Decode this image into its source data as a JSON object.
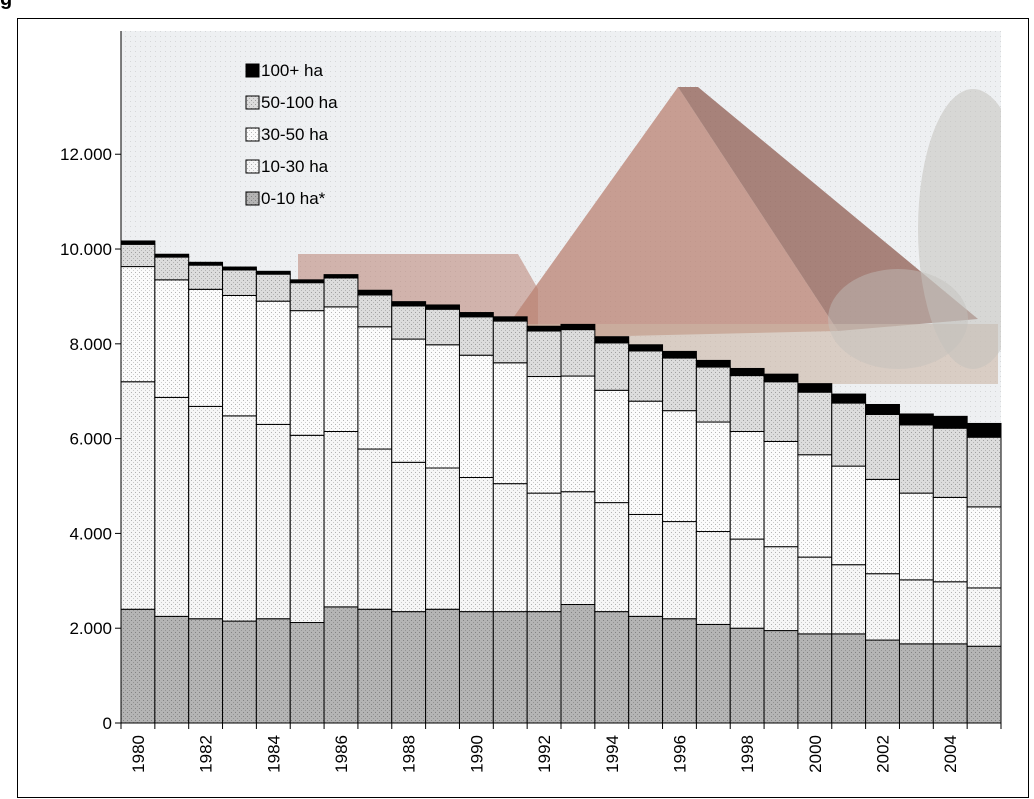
{
  "page": {
    "title": "g"
  },
  "chart_data": {
    "type": "bar",
    "stacked": true,
    "title": "",
    "xlabel": "",
    "ylabel": "",
    "ylim": [
      0,
      14600
    ],
    "y_ticks": [
      0,
      2000,
      4000,
      6000,
      8000,
      10000,
      12000
    ],
    "y_tick_labels": [
      "0",
      "2.000",
      "4.000",
      "6.000",
      "8.000",
      "10.000",
      "12.000"
    ],
    "x_tick_labels": [
      "1980",
      "1982",
      "1984",
      "1986",
      "1988",
      "1990",
      "1992",
      "1994",
      "1996",
      "1998",
      "2000",
      "2002",
      "2004"
    ],
    "categories": [
      "1980",
      "1981",
      "1982",
      "1983",
      "1984",
      "1985",
      "1986",
      "1987",
      "1988",
      "1989",
      "1990",
      "1991",
      "1992",
      "1993",
      "1994",
      "1995",
      "1996",
      "1997",
      "1998",
      "1999",
      "2000",
      "2001",
      "2002",
      "2003",
      "2004",
      "2005"
    ],
    "series": [
      {
        "name": "0-10 ha*",
        "color": "#b4b4b4",
        "values": [
          2400,
          2250,
          2200,
          2150,
          2200,
          2120,
          2450,
          2400,
          2350,
          2400,
          2350,
          2350,
          2350,
          2500,
          2350,
          2250,
          2200,
          2080,
          2000,
          1950,
          1880,
          1880,
          1750,
          1670,
          1670,
          1620
        ]
      },
      {
        "name": "10-30 ha",
        "color": "#f6f6f6",
        "values": [
          4800,
          4620,
          4480,
          4330,
          4100,
          3950,
          3700,
          3380,
          3150,
          2980,
          2830,
          2700,
          2500,
          2380,
          2300,
          2150,
          2050,
          1960,
          1880,
          1770,
          1620,
          1460,
          1400,
          1350,
          1310,
          1230
        ]
      },
      {
        "name": "30-50 ha",
        "color": "#fbfbfb",
        "values": [
          2430,
          2480,
          2470,
          2540,
          2600,
          2630,
          2630,
          2580,
          2600,
          2600,
          2580,
          2550,
          2460,
          2440,
          2370,
          2390,
          2340,
          2310,
          2270,
          2220,
          2160,
          2080,
          1990,
          1830,
          1780,
          1710
        ]
      },
      {
        "name": "50-100 ha",
        "color": "#dcdcdc",
        "values": [
          470,
          480,
          510,
          540,
          570,
          590,
          610,
          670,
          700,
          750,
          810,
          880,
          960,
          980,
          1000,
          1060,
          1110,
          1160,
          1180,
          1260,
          1320,
          1330,
          1370,
          1440,
          1460,
          1470
        ]
      },
      {
        "name": "100+ ha",
        "color": "#000000",
        "values": [
          70,
          60,
          60,
          60,
          60,
          60,
          70,
          100,
          90,
          90,
          90,
          90,
          100,
          110,
          130,
          130,
          140,
          140,
          150,
          160,
          180,
          190,
          210,
          230,
          250,
          290
        ]
      }
    ],
    "legend": {
      "position": "top-left",
      "order": [
        "100+ ha",
        "50-100 ha",
        "30-50 ha",
        "10-30 ha",
        "0-10 ha*"
      ]
    },
    "background": {
      "sky": "#eef0f2",
      "roof": "#b98272",
      "roof_dark": "#8f5e52",
      "wall": "#ccb5a5",
      "trees": "#c4c2bd"
    },
    "grid": false
  }
}
